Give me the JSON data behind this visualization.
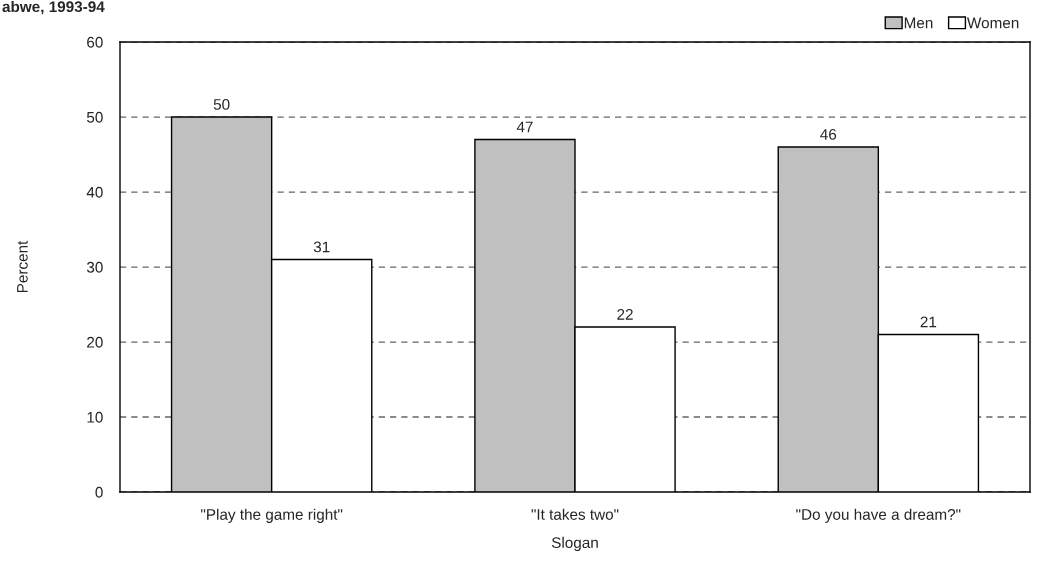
{
  "chart_data": {
    "type": "bar",
    "title": "abwe, 1993-94",
    "xlabel": "Slogan",
    "ylabel": "Percent",
    "categories": [
      "\"Play the game right\"",
      "\"It takes two\"",
      "\"Do you have a dream?\""
    ],
    "series": [
      {
        "name": "Men",
        "color": "#c0c0c0",
        "values": [
          50,
          47,
          46
        ]
      },
      {
        "name": "Women",
        "color": "#ffffff",
        "values": [
          31,
          22,
          21
        ]
      }
    ],
    "ylim": [
      0,
      60
    ],
    "yticks": [
      0,
      10,
      20,
      30,
      40,
      50,
      60
    ],
    "grid": "y",
    "line_style": "dashed",
    "legend": "top right",
    "data_labels": true
  }
}
